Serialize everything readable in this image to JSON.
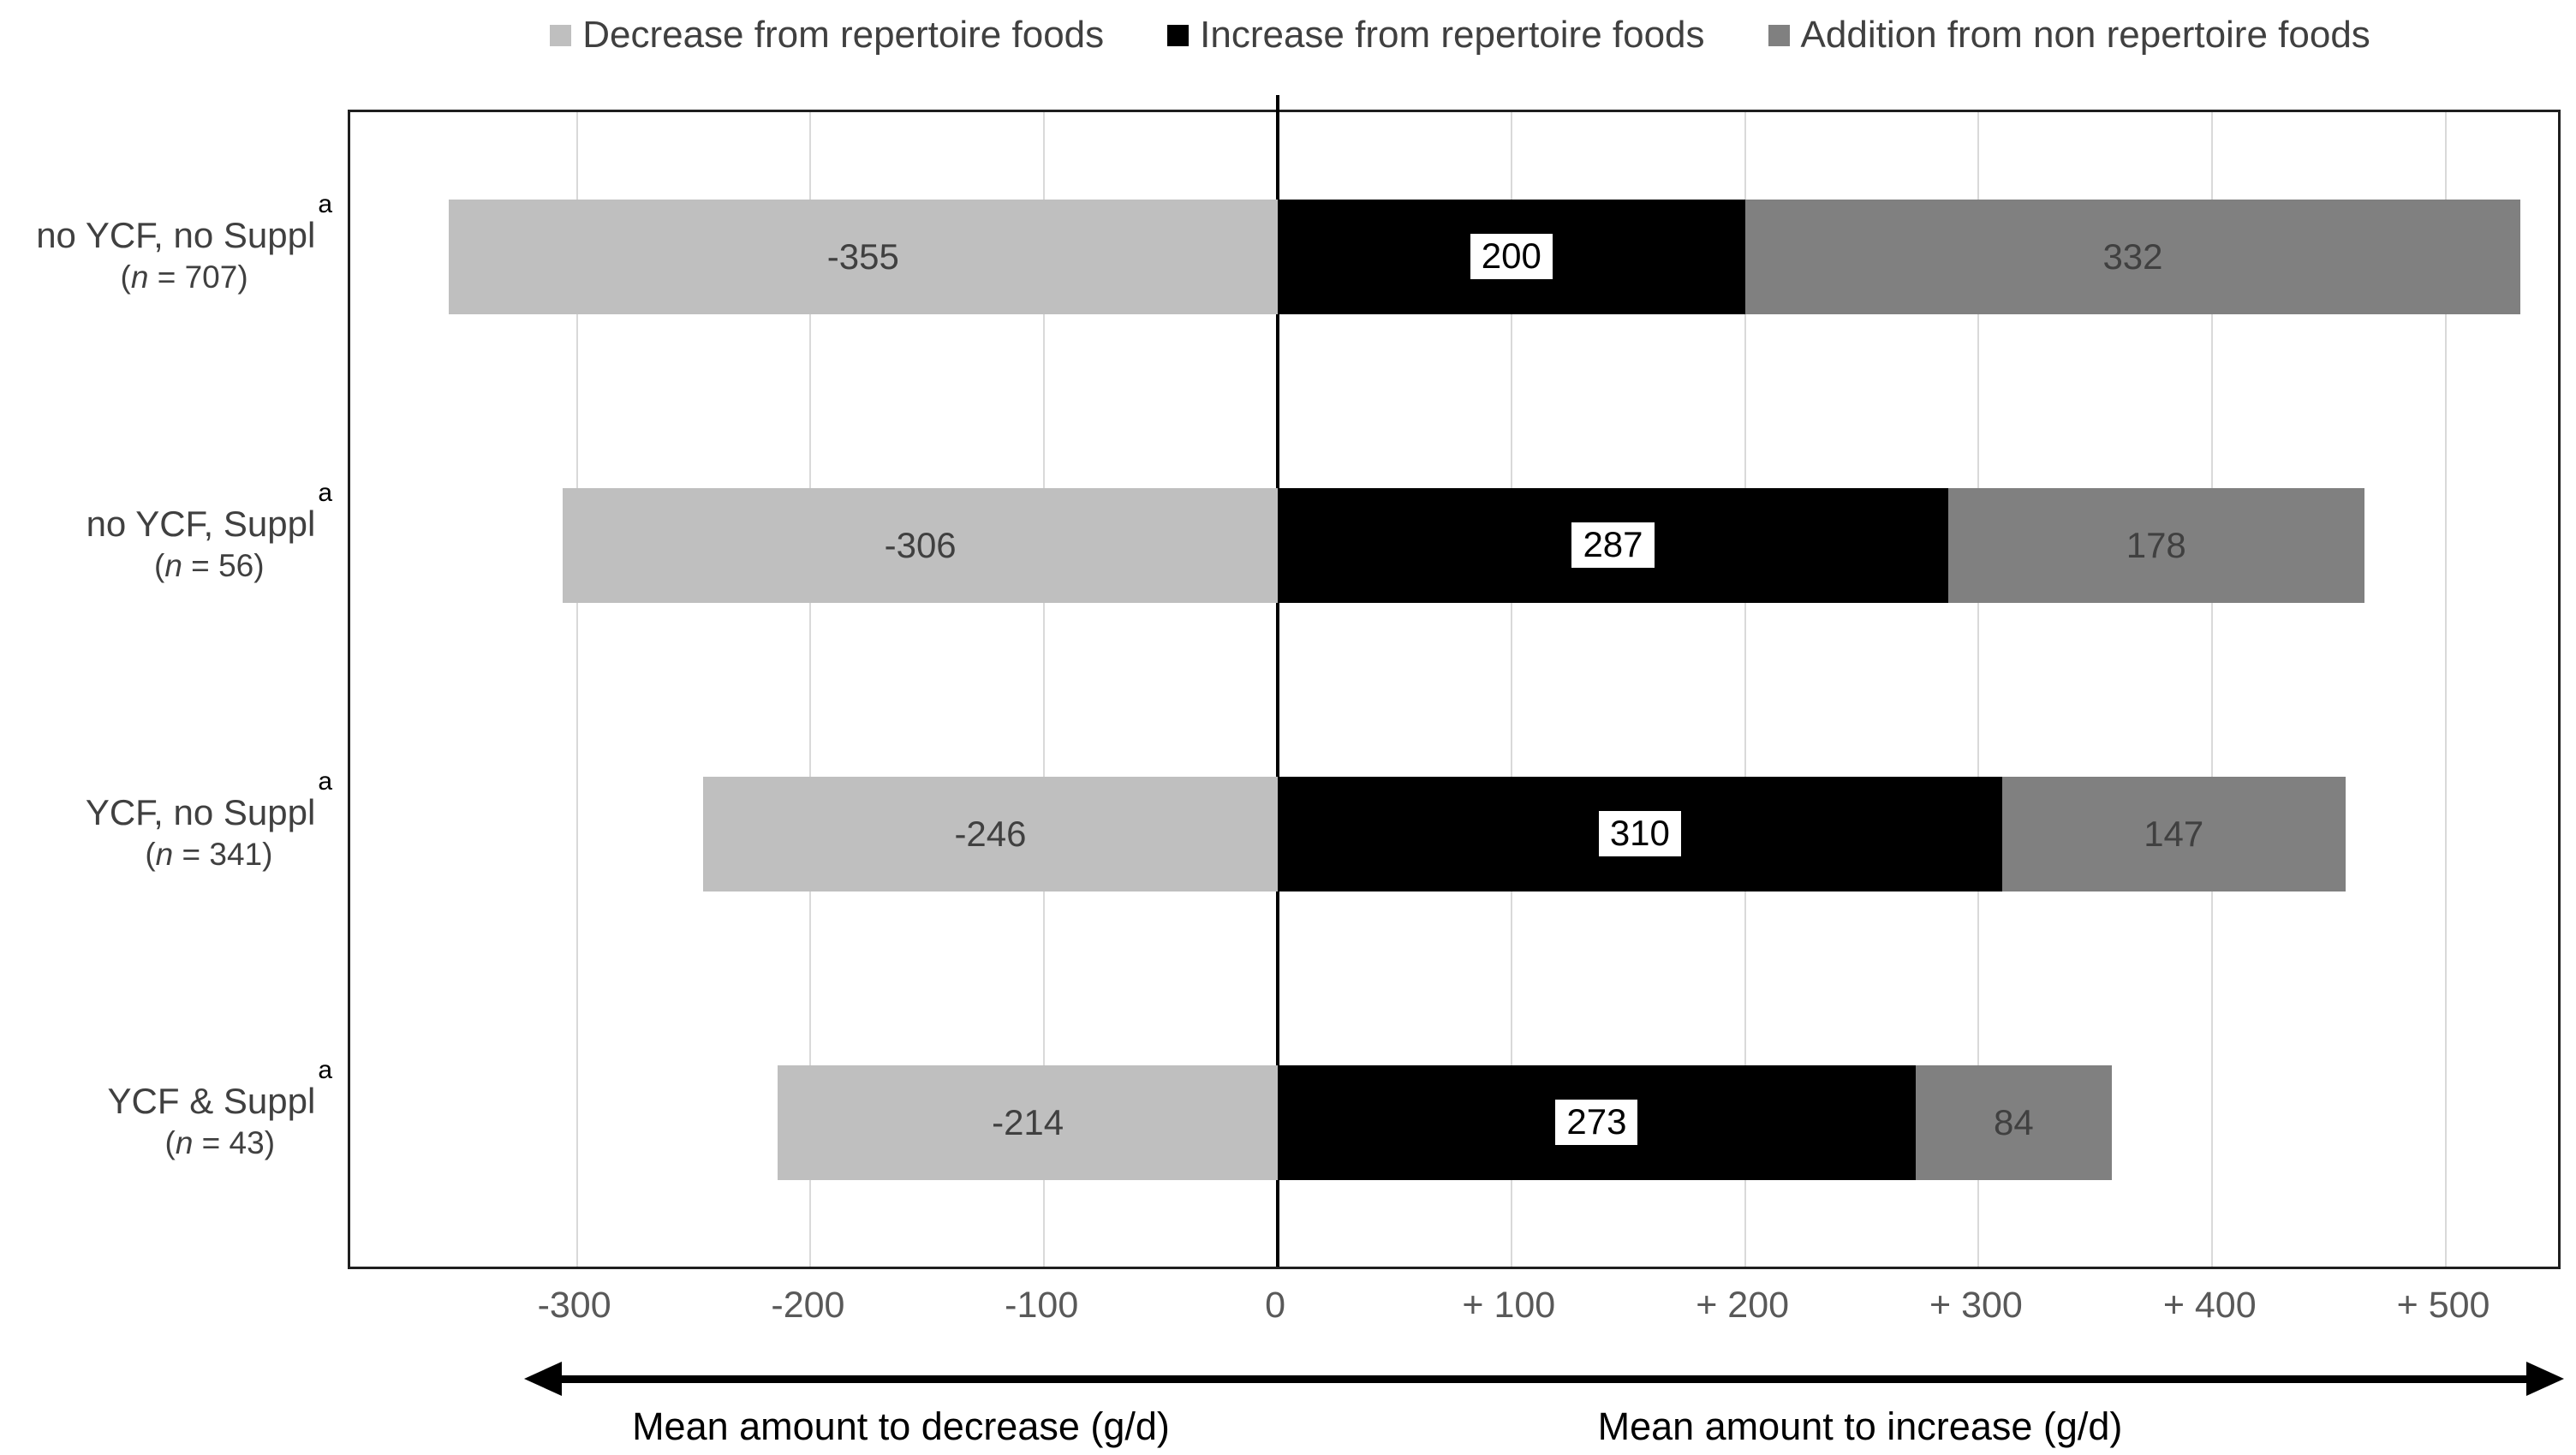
{
  "legend": {
    "items": [
      {
        "label": "Decrease from repertoire foods",
        "color": "#BFBFBF"
      },
      {
        "label": "Increase from repertoire foods",
        "color": "#000000"
      },
      {
        "label": "Addition from non repertoire foods",
        "color": "#808080"
      }
    ]
  },
  "chart_data": {
    "type": "bar",
    "orientation": "horizontal_diverging_stacked",
    "units": "g/d",
    "categories": [
      {
        "label": "no YCF, no Suppl",
        "footnote": "a",
        "n_label": {
          "open": "(",
          "var": "n",
          "rest": " = 707)"
        },
        "decrease": -355,
        "increase": 200,
        "addition": 332
      },
      {
        "label": "no YCF, Suppl",
        "footnote": "a",
        "n_label": {
          "open": "(",
          "var": "n",
          "rest": " = 56)"
        },
        "decrease": -306,
        "increase": 287,
        "addition": 178
      },
      {
        "label": "YCF, no Suppl",
        "footnote": "a",
        "n_label": {
          "open": "(",
          "var": "n",
          "rest": " = 341)"
        },
        "decrease": -246,
        "increase": 310,
        "addition": 147
      },
      {
        "label": "YCF & Suppl",
        "footnote": "a",
        "n_label": {
          "open": "(",
          "var": "n",
          "rest": " = 43)"
        },
        "decrease": -214,
        "increase": 273,
        "addition": 84
      }
    ],
    "series": [
      {
        "name": "Decrease from repertoire foods",
        "field": "decrease",
        "color": "#BFBFBF",
        "values": [
          -355,
          -306,
          -246,
          -214
        ]
      },
      {
        "name": "Increase from repertoire foods",
        "field": "increase",
        "color": "#000000",
        "values": [
          200,
          287,
          310,
          273
        ]
      },
      {
        "name": "Addition from non repertoire foods",
        "field": "addition",
        "color": "#808080",
        "values": [
          332,
          178,
          147,
          84
        ]
      }
    ],
    "x_axis": {
      "xlim": [
        -397,
        548
      ],
      "ticks": [
        {
          "v": -300,
          "label": "-300"
        },
        {
          "v": -200,
          "label": "-200"
        },
        {
          "v": -100,
          "label": "-100"
        },
        {
          "v": 0,
          "label": "0"
        },
        {
          "v": 100,
          "label": "+ 100"
        },
        {
          "v": 200,
          "label": "+ 200"
        },
        {
          "v": 300,
          "label": "+ 300"
        },
        {
          "v": 400,
          "label": "+ 400"
        },
        {
          "v": 500,
          "label": "+ 500"
        }
      ],
      "title_left": "Mean amount to decrease (g/d)",
      "title_right": "Mean amount to increase (g/d)"
    },
    "grid": {
      "gridline_color": "#D9D9D9",
      "zero_line_color": "#000000"
    },
    "colors": {
      "value_text": "#404040",
      "tick_text": "#595959",
      "category_text": "#404040",
      "footnote_text": "#000000",
      "plot_border": "#1F1F1F"
    }
  }
}
